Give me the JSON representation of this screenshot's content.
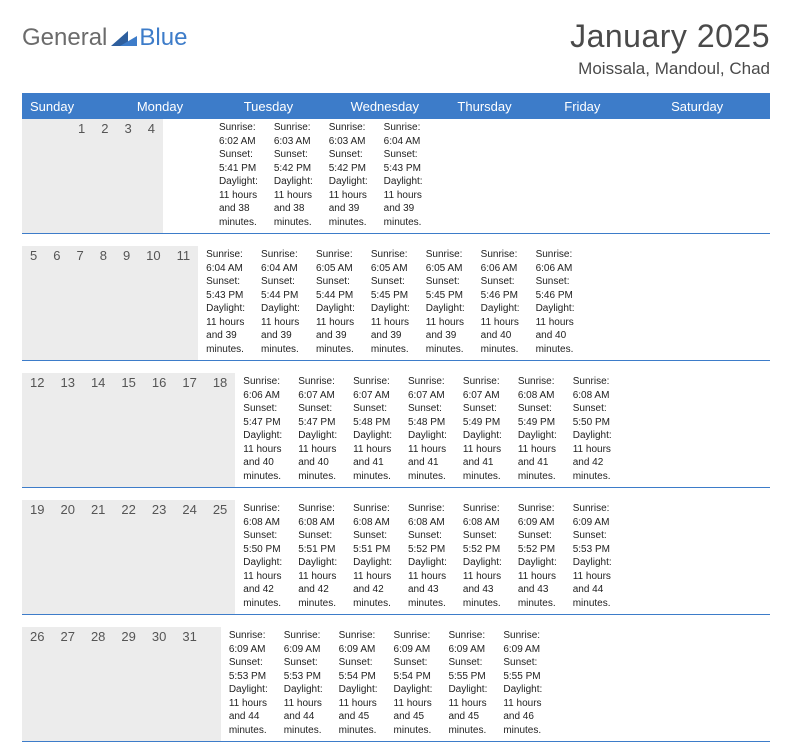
{
  "brand": {
    "text1": "General",
    "text2": "Blue"
  },
  "title": "January 2025",
  "location": "Moissala, Mandoul, Chad",
  "colors": {
    "accent": "#3d7cc9",
    "header_bg": "#3d7cc9",
    "header_text": "#ffffff",
    "daynum_bg": "#ececec",
    "page_bg": "#ffffff",
    "text": "#333333",
    "logo_gray": "#6b6b6b"
  },
  "day_labels": [
    "Sunday",
    "Monday",
    "Tuesday",
    "Wednesday",
    "Thursday",
    "Friday",
    "Saturday"
  ],
  "weeks": [
    [
      null,
      null,
      null,
      {
        "n": "1",
        "sr": "Sunrise: 6:02 AM",
        "ss": "Sunset: 5:41 PM",
        "d1": "Daylight: 11 hours",
        "d2": "and 38 minutes."
      },
      {
        "n": "2",
        "sr": "Sunrise: 6:03 AM",
        "ss": "Sunset: 5:42 PM",
        "d1": "Daylight: 11 hours",
        "d2": "and 38 minutes."
      },
      {
        "n": "3",
        "sr": "Sunrise: 6:03 AM",
        "ss": "Sunset: 5:42 PM",
        "d1": "Daylight: 11 hours",
        "d2": "and 39 minutes."
      },
      {
        "n": "4",
        "sr": "Sunrise: 6:04 AM",
        "ss": "Sunset: 5:43 PM",
        "d1": "Daylight: 11 hours",
        "d2": "and 39 minutes."
      }
    ],
    [
      {
        "n": "5",
        "sr": "Sunrise: 6:04 AM",
        "ss": "Sunset: 5:43 PM",
        "d1": "Daylight: 11 hours",
        "d2": "and 39 minutes."
      },
      {
        "n": "6",
        "sr": "Sunrise: 6:04 AM",
        "ss": "Sunset: 5:44 PM",
        "d1": "Daylight: 11 hours",
        "d2": "and 39 minutes."
      },
      {
        "n": "7",
        "sr": "Sunrise: 6:05 AM",
        "ss": "Sunset: 5:44 PM",
        "d1": "Daylight: 11 hours",
        "d2": "and 39 minutes."
      },
      {
        "n": "8",
        "sr": "Sunrise: 6:05 AM",
        "ss": "Sunset: 5:45 PM",
        "d1": "Daylight: 11 hours",
        "d2": "and 39 minutes."
      },
      {
        "n": "9",
        "sr": "Sunrise: 6:05 AM",
        "ss": "Sunset: 5:45 PM",
        "d1": "Daylight: 11 hours",
        "d2": "and 39 minutes."
      },
      {
        "n": "10",
        "sr": "Sunrise: 6:06 AM",
        "ss": "Sunset: 5:46 PM",
        "d1": "Daylight: 11 hours",
        "d2": "and 40 minutes."
      },
      {
        "n": "11",
        "sr": "Sunrise: 6:06 AM",
        "ss": "Sunset: 5:46 PM",
        "d1": "Daylight: 11 hours",
        "d2": "and 40 minutes."
      }
    ],
    [
      {
        "n": "12",
        "sr": "Sunrise: 6:06 AM",
        "ss": "Sunset: 5:47 PM",
        "d1": "Daylight: 11 hours",
        "d2": "and 40 minutes."
      },
      {
        "n": "13",
        "sr": "Sunrise: 6:07 AM",
        "ss": "Sunset: 5:47 PM",
        "d1": "Daylight: 11 hours",
        "d2": "and 40 minutes."
      },
      {
        "n": "14",
        "sr": "Sunrise: 6:07 AM",
        "ss": "Sunset: 5:48 PM",
        "d1": "Daylight: 11 hours",
        "d2": "and 41 minutes."
      },
      {
        "n": "15",
        "sr": "Sunrise: 6:07 AM",
        "ss": "Sunset: 5:48 PM",
        "d1": "Daylight: 11 hours",
        "d2": "and 41 minutes."
      },
      {
        "n": "16",
        "sr": "Sunrise: 6:07 AM",
        "ss": "Sunset: 5:49 PM",
        "d1": "Daylight: 11 hours",
        "d2": "and 41 minutes."
      },
      {
        "n": "17",
        "sr": "Sunrise: 6:08 AM",
        "ss": "Sunset: 5:49 PM",
        "d1": "Daylight: 11 hours",
        "d2": "and 41 minutes."
      },
      {
        "n": "18",
        "sr": "Sunrise: 6:08 AM",
        "ss": "Sunset: 5:50 PM",
        "d1": "Daylight: 11 hours",
        "d2": "and 42 minutes."
      }
    ],
    [
      {
        "n": "19",
        "sr": "Sunrise: 6:08 AM",
        "ss": "Sunset: 5:50 PM",
        "d1": "Daylight: 11 hours",
        "d2": "and 42 minutes."
      },
      {
        "n": "20",
        "sr": "Sunrise: 6:08 AM",
        "ss": "Sunset: 5:51 PM",
        "d1": "Daylight: 11 hours",
        "d2": "and 42 minutes."
      },
      {
        "n": "21",
        "sr": "Sunrise: 6:08 AM",
        "ss": "Sunset: 5:51 PM",
        "d1": "Daylight: 11 hours",
        "d2": "and 42 minutes."
      },
      {
        "n": "22",
        "sr": "Sunrise: 6:08 AM",
        "ss": "Sunset: 5:52 PM",
        "d1": "Daylight: 11 hours",
        "d2": "and 43 minutes."
      },
      {
        "n": "23",
        "sr": "Sunrise: 6:08 AM",
        "ss": "Sunset: 5:52 PM",
        "d1": "Daylight: 11 hours",
        "d2": "and 43 minutes."
      },
      {
        "n": "24",
        "sr": "Sunrise: 6:09 AM",
        "ss": "Sunset: 5:52 PM",
        "d1": "Daylight: 11 hours",
        "d2": "and 43 minutes."
      },
      {
        "n": "25",
        "sr": "Sunrise: 6:09 AM",
        "ss": "Sunset: 5:53 PM",
        "d1": "Daylight: 11 hours",
        "d2": "and 44 minutes."
      }
    ],
    [
      {
        "n": "26",
        "sr": "Sunrise: 6:09 AM",
        "ss": "Sunset: 5:53 PM",
        "d1": "Daylight: 11 hours",
        "d2": "and 44 minutes."
      },
      {
        "n": "27",
        "sr": "Sunrise: 6:09 AM",
        "ss": "Sunset: 5:53 PM",
        "d1": "Daylight: 11 hours",
        "d2": "and 44 minutes."
      },
      {
        "n": "28",
        "sr": "Sunrise: 6:09 AM",
        "ss": "Sunset: 5:54 PM",
        "d1": "Daylight: 11 hours",
        "d2": "and 45 minutes."
      },
      {
        "n": "29",
        "sr": "Sunrise: 6:09 AM",
        "ss": "Sunset: 5:54 PM",
        "d1": "Daylight: 11 hours",
        "d2": "and 45 minutes."
      },
      {
        "n": "30",
        "sr": "Sunrise: 6:09 AM",
        "ss": "Sunset: 5:55 PM",
        "d1": "Daylight: 11 hours",
        "d2": "and 45 minutes."
      },
      {
        "n": "31",
        "sr": "Sunrise: 6:09 AM",
        "ss": "Sunset: 5:55 PM",
        "d1": "Daylight: 11 hours",
        "d2": "and 46 minutes."
      },
      null
    ]
  ]
}
